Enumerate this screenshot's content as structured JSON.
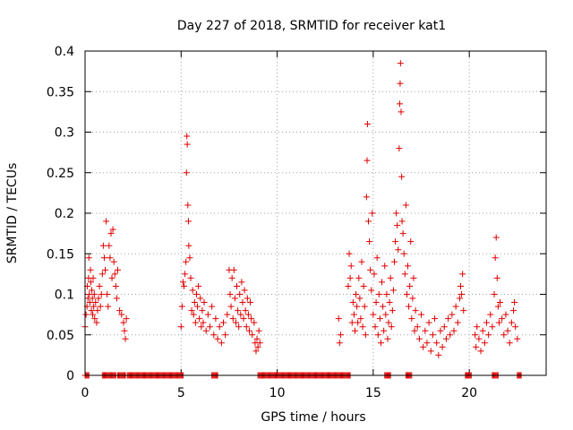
{
  "chart_data": {
    "type": "scatter",
    "title": "Day 227 of 2018, SRMTID for receiver kat1",
    "xlabel": "GPS time / hours",
    "ylabel": "SRMTID / TECUs",
    "xlim": [
      0,
      24
    ],
    "ylim": [
      0,
      0.4
    ],
    "xticks": [
      0,
      5,
      10,
      15,
      20
    ],
    "xtick_labels": [
      "0",
      "5",
      "10",
      "15",
      "20"
    ],
    "yticks": [
      0,
      0.05,
      0.1,
      0.15,
      0.2,
      0.25,
      0.3,
      0.35,
      0.4
    ],
    "ytick_labels": [
      "0",
      "0.05",
      "0.1",
      "0.15",
      "0.2",
      "0.25",
      "0.3",
      "0.35",
      "0.4"
    ],
    "grid": true,
    "marker": "plus",
    "color": "#e00000",
    "series": [
      {
        "name": "SRMTID",
        "points": [
          [
            0.0,
            0.06
          ],
          [
            0.05,
            0.075
          ],
          [
            0.1,
            0.085
          ],
          [
            0.12,
            0.11
          ],
          [
            0.15,
            0.095
          ],
          [
            0.18,
            0.12
          ],
          [
            0.2,
            0.145
          ],
          [
            0.22,
            0.1
          ],
          [
            0.25,
            0.09
          ],
          [
            0.28,
            0.13
          ],
          [
            0.3,
            0.115
          ],
          [
            0.33,
            0.08
          ],
          [
            0.35,
            0.105
          ],
          [
            0.38,
            0.095
          ],
          [
            0.4,
            0.075
          ],
          [
            0.42,
            0.12
          ],
          [
            0.45,
            0.085
          ],
          [
            0.48,
            0.1
          ],
          [
            0.5,
            0.07
          ],
          [
            0.55,
            0.09
          ],
          [
            0.6,
            0.065
          ],
          [
            0.65,
            0.08
          ],
          [
            0.7,
            0.095
          ],
          [
            0.75,
            0.11
          ],
          [
            0.8,
            0.085
          ],
          [
            0.85,
            0.1
          ],
          [
            0.9,
            0.125
          ],
          [
            0.95,
            0.16
          ],
          [
            1.0,
            0.145
          ],
          [
            1.05,
            0.13
          ],
          [
            1.1,
            0.19
          ],
          [
            1.15,
            0.1
          ],
          [
            1.2,
            0.085
          ],
          [
            1.25,
            0.16
          ],
          [
            1.3,
            0.145
          ],
          [
            1.35,
            0.175
          ],
          [
            1.4,
            0.12
          ],
          [
            1.45,
            0.18
          ],
          [
            1.5,
            0.14
          ],
          [
            1.55,
            0.125
          ],
          [
            1.6,
            0.11
          ],
          [
            1.65,
            0.095
          ],
          [
            1.7,
            0.13
          ],
          [
            1.8,
            0.08
          ],
          [
            1.9,
            0.075
          ],
          [
            2.0,
            0.065
          ],
          [
            2.05,
            0.055
          ],
          [
            2.1,
            0.045
          ],
          [
            2.15,
            0.07
          ],
          [
            5.0,
            0.06
          ],
          [
            5.05,
            0.085
          ],
          [
            5.1,
            0.115
          ],
          [
            5.15,
            0.11
          ],
          [
            5.2,
            0.125
          ],
          [
            5.25,
            0.14
          ],
          [
            5.28,
            0.25
          ],
          [
            5.3,
            0.295
          ],
          [
            5.32,
            0.285
          ],
          [
            5.35,
            0.21
          ],
          [
            5.38,
            0.19
          ],
          [
            5.4,
            0.16
          ],
          [
            5.45,
            0.145
          ],
          [
            5.5,
            0.12
          ],
          [
            5.55,
            0.08
          ],
          [
            5.6,
            0.105
          ],
          [
            5.65,
            0.075
          ],
          [
            5.7,
            0.09
          ],
          [
            5.75,
            0.065
          ],
          [
            5.8,
            0.1
          ],
          [
            5.85,
            0.085
          ],
          [
            5.9,
            0.11
          ],
          [
            5.95,
            0.07
          ],
          [
            6.0,
            0.095
          ],
          [
            6.05,
            0.06
          ],
          [
            6.1,
            0.08
          ],
          [
            6.15,
            0.065
          ],
          [
            6.2,
            0.09
          ],
          [
            6.3,
            0.055
          ],
          [
            6.4,
            0.075
          ],
          [
            6.5,
            0.06
          ],
          [
            6.6,
            0.085
          ],
          [
            6.7,
            0.05
          ],
          [
            6.8,
            0.07
          ],
          [
            6.9,
            0.045
          ],
          [
            7.0,
            0.06
          ],
          [
            7.1,
            0.04
          ],
          [
            7.2,
            0.065
          ],
          [
            7.3,
            0.05
          ],
          [
            7.4,
            0.075
          ],
          [
            7.5,
            0.13
          ],
          [
            7.55,
            0.1
          ],
          [
            7.6,
            0.085
          ],
          [
            7.65,
            0.12
          ],
          [
            7.7,
            0.07
          ],
          [
            7.75,
            0.13
          ],
          [
            7.8,
            0.095
          ],
          [
            7.85,
            0.065
          ],
          [
            7.9,
            0.11
          ],
          [
            7.95,
            0.08
          ],
          [
            8.0,
            0.06
          ],
          [
            8.05,
            0.1
          ],
          [
            8.1,
            0.075
          ],
          [
            8.15,
            0.115
          ],
          [
            8.2,
            0.09
          ],
          [
            8.25,
            0.07
          ],
          [
            8.3,
            0.105
          ],
          [
            8.35,
            0.08
          ],
          [
            8.4,
            0.06
          ],
          [
            8.45,
            0.095
          ],
          [
            8.5,
            0.075
          ],
          [
            8.55,
            0.055
          ],
          [
            8.6,
            0.09
          ],
          [
            8.65,
            0.07
          ],
          [
            8.7,
            0.05
          ],
          [
            8.8,
            0.065
          ],
          [
            8.85,
            0.04
          ],
          [
            8.9,
            0.03
          ],
          [
            8.95,
            0.045
          ],
          [
            9.0,
            0.035
          ],
          [
            9.05,
            0.055
          ],
          [
            9.1,
            0.04
          ],
          [
            13.2,
            0.07
          ],
          [
            13.25,
            0.04
          ],
          [
            13.3,
            0.05
          ],
          [
            13.7,
            0.11
          ],
          [
            13.75,
            0.15
          ],
          [
            13.8,
            0.12
          ],
          [
            13.85,
            0.135
          ],
          [
            13.9,
            0.065
          ],
          [
            13.95,
            0.09
          ],
          [
            14.0,
            0.075
          ],
          [
            14.05,
            0.055
          ],
          [
            14.1,
            0.1
          ],
          [
            14.15,
            0.085
          ],
          [
            14.2,
            0.065
          ],
          [
            14.25,
            0.12
          ],
          [
            14.3,
            0.095
          ],
          [
            14.35,
            0.07
          ],
          [
            14.4,
            0.14
          ],
          [
            14.45,
            0.06
          ],
          [
            14.5,
            0.11
          ],
          [
            14.55,
            0.085
          ],
          [
            14.6,
            0.05
          ],
          [
            14.65,
            0.22
          ],
          [
            14.68,
            0.265
          ],
          [
            14.7,
            0.31
          ],
          [
            14.75,
            0.19
          ],
          [
            14.8,
            0.165
          ],
          [
            14.85,
            0.13
          ],
          [
            14.9,
            0.105
          ],
          [
            14.95,
            0.2
          ],
          [
            15.0,
            0.075
          ],
          [
            15.05,
            0.125
          ],
          [
            15.1,
            0.06
          ],
          [
            15.15,
            0.09
          ],
          [
            15.2,
            0.145
          ],
          [
            15.25,
            0.05
          ],
          [
            15.3,
            0.1
          ],
          [
            15.35,
            0.07
          ],
          [
            15.4,
            0.04
          ],
          [
            15.45,
            0.115
          ],
          [
            15.5,
            0.085
          ],
          [
            15.55,
            0.055
          ],
          [
            15.6,
            0.135
          ],
          [
            15.65,
            0.075
          ],
          [
            15.7,
            0.1
          ],
          [
            15.75,
            0.045
          ],
          [
            15.8,
            0.065
          ],
          [
            15.85,
            0.09
          ],
          [
            15.9,
            0.12
          ],
          [
            15.95,
            0.06
          ],
          [
            16.0,
            0.08
          ],
          [
            16.05,
            0.105
          ],
          [
            16.1,
            0.14
          ],
          [
            16.15,
            0.165
          ],
          [
            16.2,
            0.2
          ],
          [
            16.25,
            0.185
          ],
          [
            16.3,
            0.155
          ],
          [
            16.35,
            0.28
          ],
          [
            16.38,
            0.335
          ],
          [
            16.4,
            0.36
          ],
          [
            16.42,
            0.385
          ],
          [
            16.45,
            0.325
          ],
          [
            16.48,
            0.245
          ],
          [
            16.5,
            0.19
          ],
          [
            16.55,
            0.175
          ],
          [
            16.6,
            0.15
          ],
          [
            16.65,
            0.125
          ],
          [
            16.7,
            0.21
          ],
          [
            16.75,
            0.1
          ],
          [
            16.8,
            0.135
          ],
          [
            16.85,
            0.085
          ],
          [
            16.9,
            0.11
          ],
          [
            16.95,
            0.165
          ],
          [
            17.0,
            0.07
          ],
          [
            17.05,
            0.095
          ],
          [
            17.1,
            0.12
          ],
          [
            17.15,
            0.055
          ],
          [
            17.2,
            0.08
          ],
          [
            17.3,
            0.06
          ],
          [
            17.4,
            0.045
          ],
          [
            17.5,
            0.075
          ],
          [
            17.6,
            0.035
          ],
          [
            17.7,
            0.055
          ],
          [
            17.8,
            0.04
          ],
          [
            17.9,
            0.065
          ],
          [
            18.0,
            0.03
          ],
          [
            18.1,
            0.05
          ],
          [
            18.2,
            0.07
          ],
          [
            18.3,
            0.04
          ],
          [
            18.4,
            0.025
          ],
          [
            18.5,
            0.055
          ],
          [
            18.6,
            0.035
          ],
          [
            18.7,
            0.06
          ],
          [
            18.8,
            0.045
          ],
          [
            18.9,
            0.07
          ],
          [
            19.0,
            0.05
          ],
          [
            19.1,
            0.075
          ],
          [
            19.2,
            0.055
          ],
          [
            19.3,
            0.085
          ],
          [
            19.4,
            0.065
          ],
          [
            19.5,
            0.095
          ],
          [
            19.55,
            0.11
          ],
          [
            19.6,
            0.1
          ],
          [
            19.65,
            0.125
          ],
          [
            19.7,
            0.08
          ],
          [
            20.3,
            0.05
          ],
          [
            20.35,
            0.035
          ],
          [
            20.4,
            0.06
          ],
          [
            20.5,
            0.045
          ],
          [
            20.6,
            0.03
          ],
          [
            20.7,
            0.055
          ],
          [
            20.8,
            0.04
          ],
          [
            20.9,
            0.065
          ],
          [
            21.0,
            0.05
          ],
          [
            21.1,
            0.075
          ],
          [
            21.2,
            0.06
          ],
          [
            21.3,
            0.1
          ],
          [
            21.35,
            0.145
          ],
          [
            21.4,
            0.17
          ],
          [
            21.45,
            0.12
          ],
          [
            21.5,
            0.085
          ],
          [
            21.55,
            0.065
          ],
          [
            21.6,
            0.09
          ],
          [
            21.7,
            0.07
          ],
          [
            21.8,
            0.05
          ],
          [
            21.9,
            0.075
          ],
          [
            22.0,
            0.055
          ],
          [
            22.1,
            0.04
          ],
          [
            22.2,
            0.065
          ],
          [
            22.3,
            0.08
          ],
          [
            22.35,
            0.09
          ],
          [
            22.4,
            0.06
          ],
          [
            22.5,
            0.045
          ]
        ]
      }
    ],
    "zero_intervals": [
      [
        0.0,
        0.2
      ],
      [
        0.9,
        1.6
      ],
      [
        1.7,
        2.1
      ],
      [
        2.2,
        5.1
      ],
      [
        6.6,
        6.9
      ],
      [
        9.0,
        13.8
      ],
      [
        15.6,
        15.9
      ],
      [
        16.7,
        17.0
      ],
      [
        19.8,
        20.1
      ],
      [
        21.2,
        21.5
      ],
      [
        22.5,
        22.7
      ]
    ]
  }
}
